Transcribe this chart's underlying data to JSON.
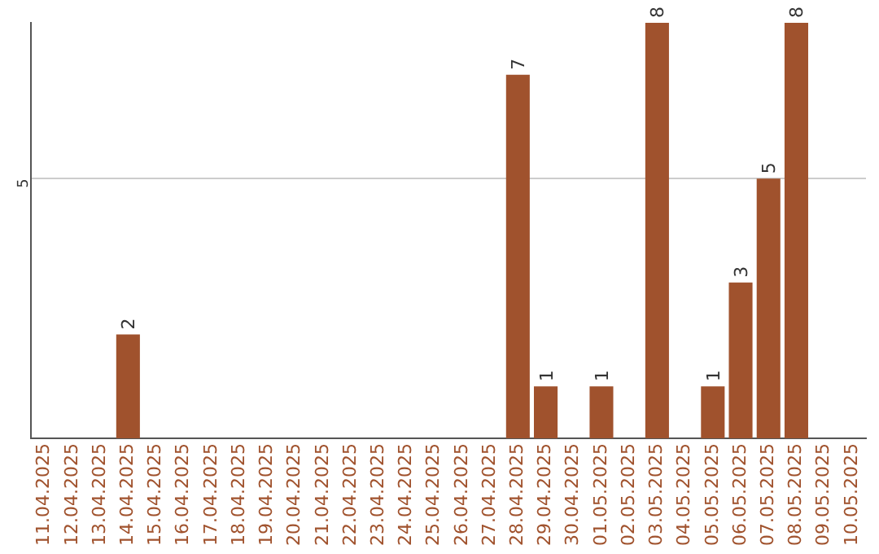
{
  "chart_data": {
    "type": "bar",
    "categories": [
      "11.04.2025",
      "12.04.2025",
      "13.04.2025",
      "14.04.2025",
      "15.04.2025",
      "16.04.2025",
      "17.04.2025",
      "18.04.2025",
      "19.04.2025",
      "20.04.2025",
      "21.04.2025",
      "22.04.2025",
      "23.04.2025",
      "24.04.2025",
      "25.04.2025",
      "26.04.2025",
      "27.04.2025",
      "28.04.2025",
      "29.04.2025",
      "30.04.2025",
      "01.05.2025",
      "02.05.2025",
      "03.05.2025",
      "04.05.2025",
      "05.05.2025",
      "06.05.2025",
      "07.05.2025",
      "08.05.2025",
      "09.05.2025",
      "10.05.2025"
    ],
    "values": [
      null,
      null,
      null,
      2,
      null,
      null,
      null,
      null,
      null,
      null,
      null,
      null,
      null,
      null,
      null,
      null,
      null,
      7,
      1,
      null,
      1,
      null,
      8,
      null,
      1,
      3,
      5,
      8,
      null,
      null
    ],
    "color": "#a0522d",
    "ylim": [
      0,
      8
    ],
    "yticks": [
      5
    ],
    "grid": "y",
    "data_labels": true,
    "legend": false
  }
}
